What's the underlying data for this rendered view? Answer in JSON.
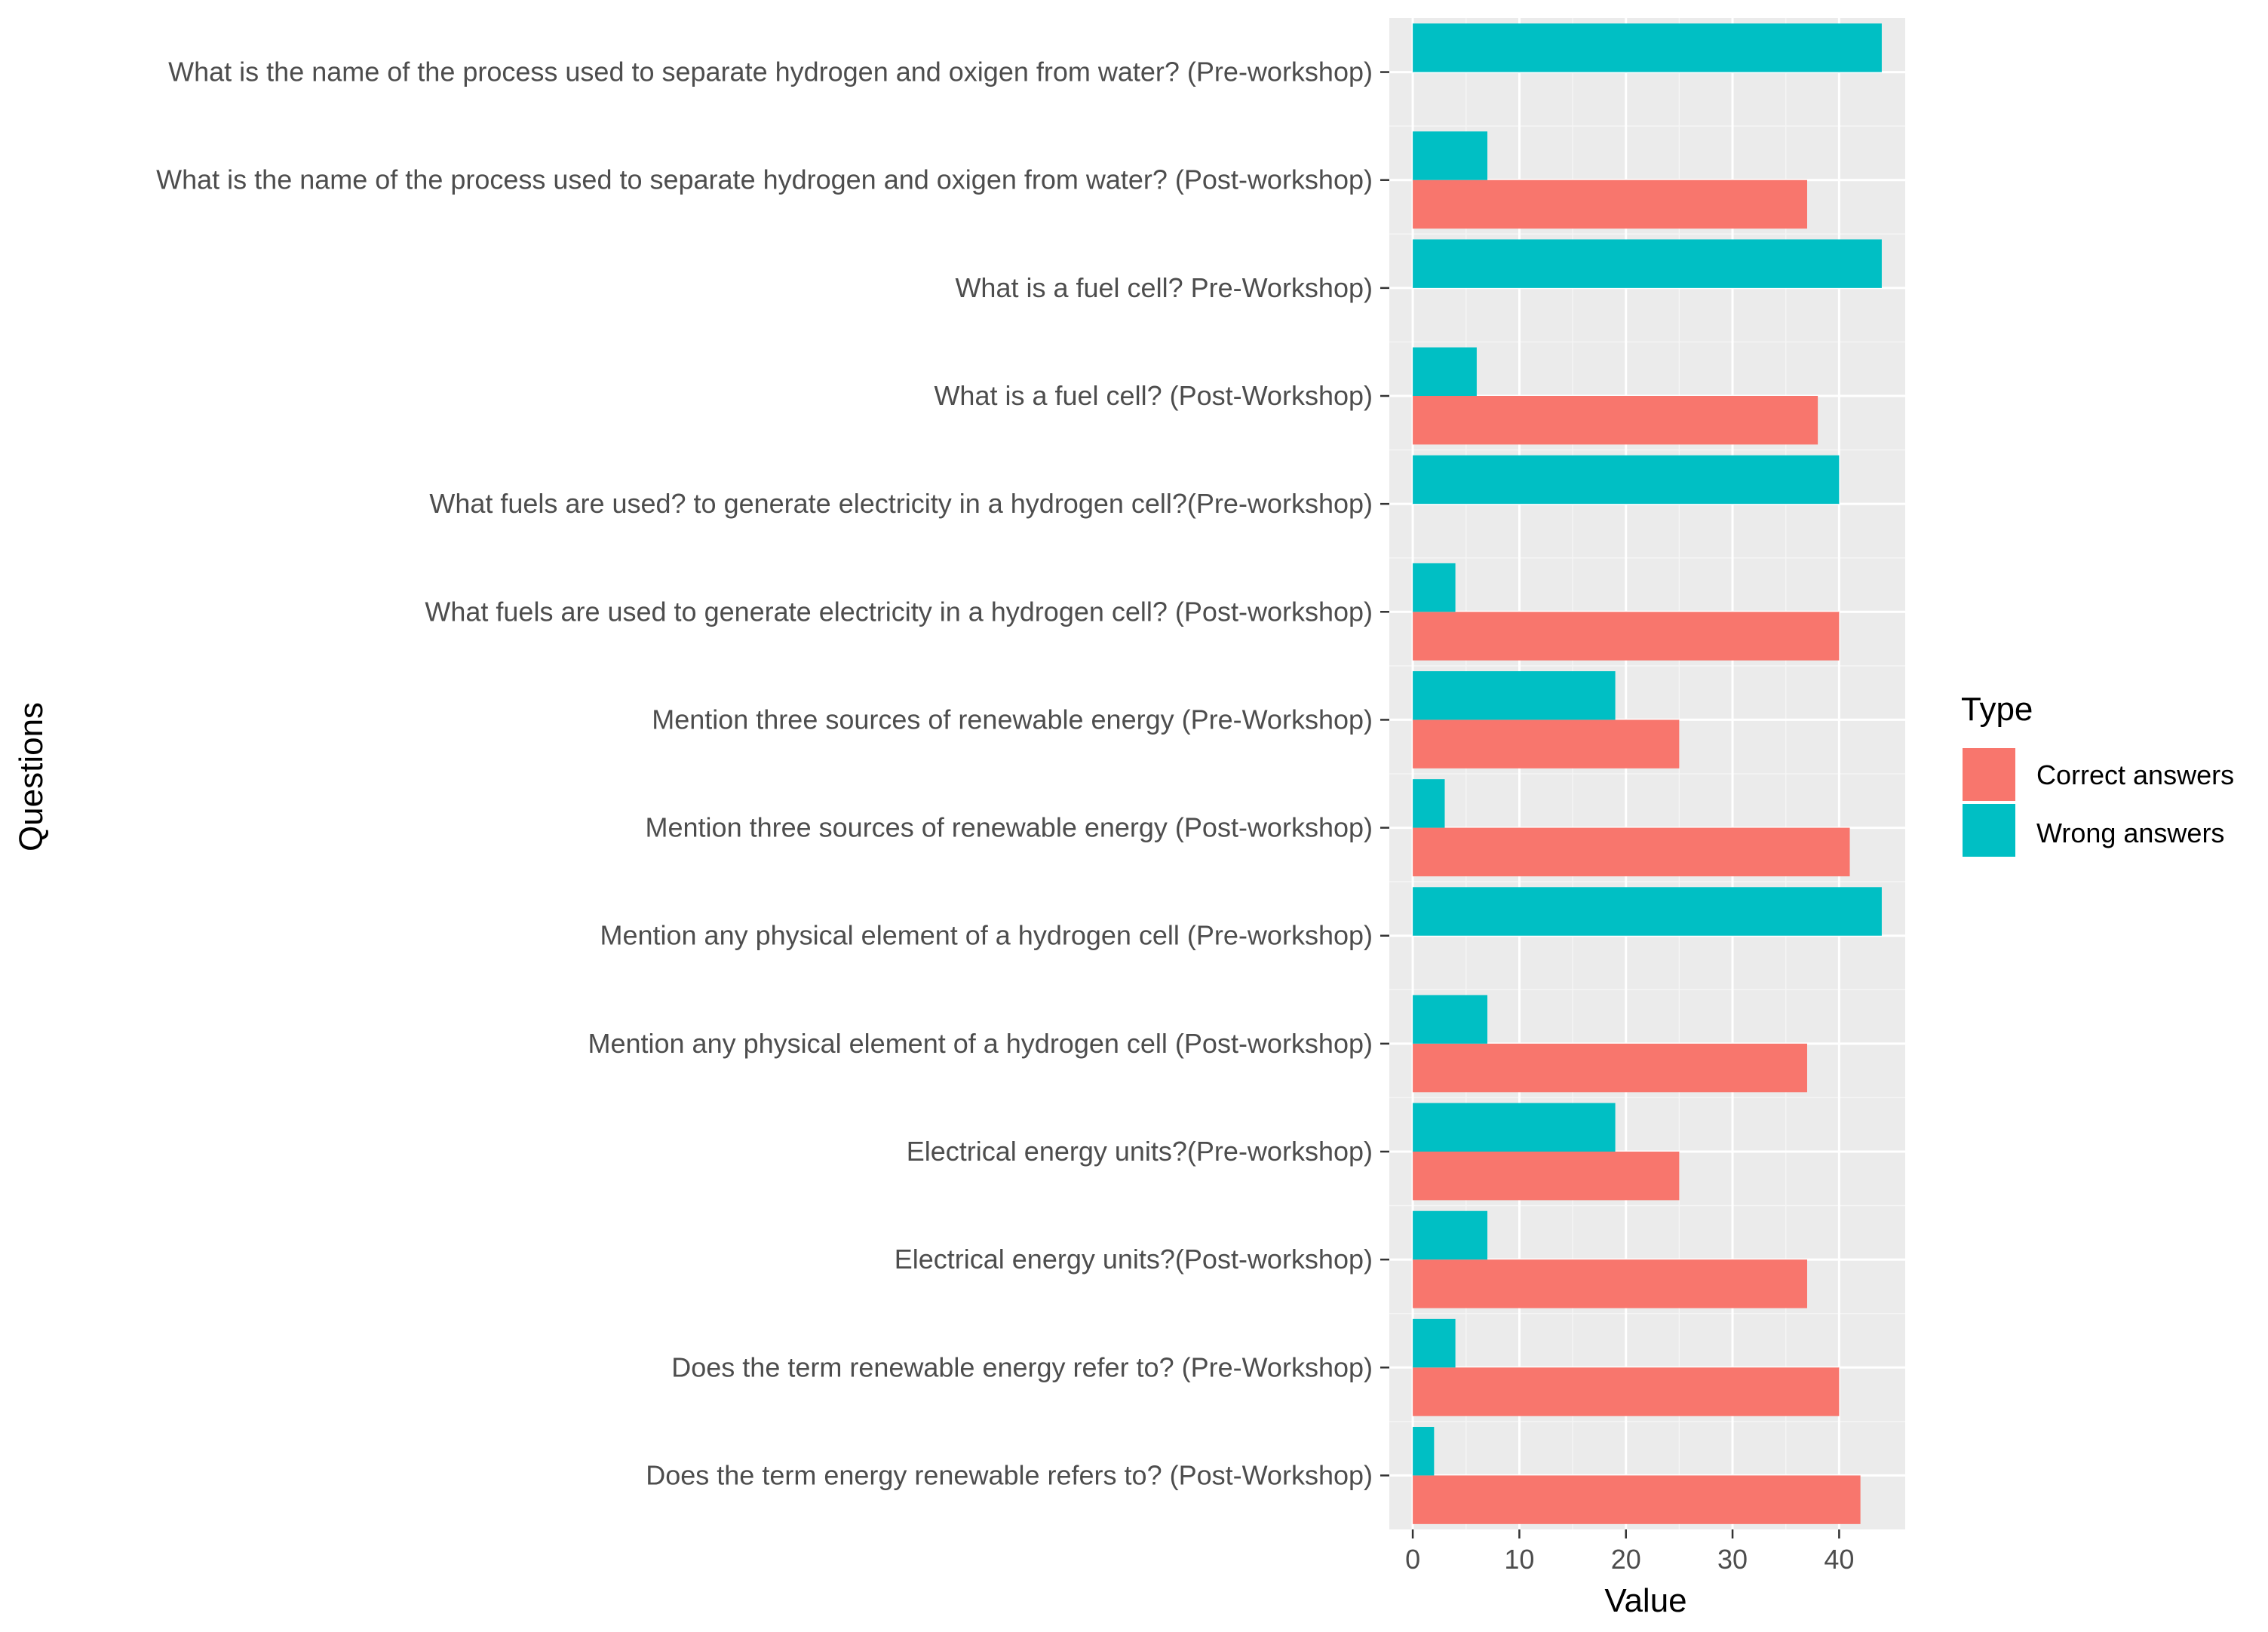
{
  "chart_data": {
    "type": "bar",
    "orientation": "horizontal",
    "title": "",
    "xlabel": "Value",
    "ylabel": "Questions",
    "xlim": [
      -2.2,
      46.2
    ],
    "xticks": [
      0,
      10,
      20,
      30,
      40
    ],
    "xtick_labels": [
      "0",
      "10",
      "20",
      "30",
      "40"
    ],
    "grid": true,
    "legend_title": "Type",
    "legend_position": "right",
    "categories": [
      "What is the name of the process used to separate hydrogen and oxigen from water? (Pre-workshop)",
      "What is the name of the process used to separate hydrogen and oxigen from water? (Post-workshop)",
      "What is a fuel cell? Pre-Workshop)",
      "What is a fuel cell? (Post-Workshop)",
      "What fuels are used? to generate electricity in a hydrogen cell?(Pre-workshop)",
      "What fuels are used to generate electricity in a hydrogen cell? (Post-workshop)",
      "Mention three sources of renewable energy (Pre-Workshop)",
      "Mention three sources of renewable energy (Post-workshop)",
      "Mention any physical element of a hydrogen cell (Pre-workshop)",
      "Mention any physical element of a hydrogen cell (Post-workshop)",
      "Electrical energy units?(Pre-workshop)",
      "Electrical energy units?(Post-workshop)",
      "Does the term renewable energy refer to? (Pre-Workshop)",
      "Does the term energy renewable refers to? (Post-Workshop)"
    ],
    "series": [
      {
        "name": "Correct answers",
        "color": "#F8766D",
        "values": [
          0,
          37,
          0,
          38,
          0,
          40,
          25,
          41,
          0,
          37,
          25,
          37,
          40,
          42
        ]
      },
      {
        "name": "Wrong answers",
        "color": "#00BFC4",
        "values": [
          44,
          7,
          44,
          6,
          40,
          4,
          19,
          3,
          44,
          7,
          19,
          7,
          4,
          2
        ]
      }
    ]
  },
  "colors": {
    "panel_background": "#EBEBEB",
    "grid_major": "#FFFFFF",
    "grid_minor": "#F5F5F5",
    "tick_color": "#333333"
  }
}
